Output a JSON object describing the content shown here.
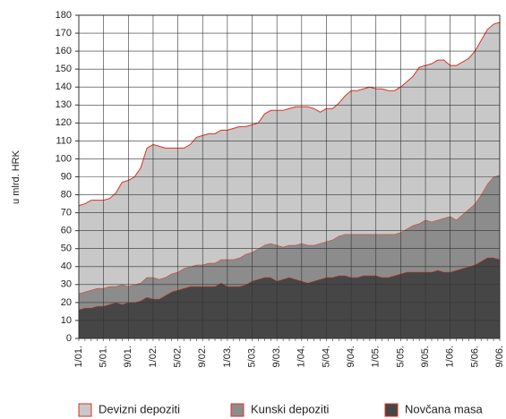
{
  "chart_data": {
    "type": "stacked-area",
    "y_label": "u mlrd. HRK",
    "categories": [
      "1/01.",
      null,
      null,
      null,
      "5/01.",
      null,
      null,
      null,
      "9/01.",
      null,
      null,
      null,
      "1/02.",
      null,
      null,
      null,
      "5/02.",
      null,
      null,
      null,
      "9/02.",
      null,
      null,
      null,
      "1/03.",
      null,
      null,
      null,
      "5/03.",
      null,
      null,
      null,
      "9/03.",
      null,
      null,
      null,
      "1/04.",
      null,
      null,
      null,
      "5/04.",
      null,
      null,
      null,
      "9/04.",
      null,
      null,
      null,
      "1/05.",
      null,
      null,
      null,
      "5/05.",
      null,
      null,
      null,
      "9/05.",
      null,
      null,
      null,
      "1/06.",
      null,
      null,
      null,
      "5/06.",
      null,
      null,
      null,
      "9/06."
    ],
    "series": [
      {
        "name": "Devizni depoziti",
        "color": "#c8c8c8",
        "values": [
          49,
          49,
          50,
          49,
          49,
          49,
          52,
          57,
          59,
          60,
          64,
          72,
          74,
          74,
          72,
          70,
          69,
          67,
          68,
          71,
          72,
          72,
          72,
          72,
          72,
          73,
          73,
          71,
          71,
          70,
          73,
          74,
          75,
          76,
          76,
          77,
          76,
          77,
          76,
          73,
          74,
          73,
          74,
          77,
          80,
          80,
          81,
          82,
          81,
          81,
          80,
          80,
          81,
          82,
          83,
          87,
          86,
          88,
          89,
          88,
          84,
          86,
          85,
          84,
          85,
          86,
          86,
          85,
          85
        ]
      },
      {
        "name": "Kunski depoziti",
        "color": "#8c8c8c",
        "values": [
          9,
          9,
          10,
          10,
          10,
          10,
          9,
          11,
          9,
          10,
          10,
          11,
          12,
          11,
          10,
          10,
          10,
          11,
          11,
          12,
          12,
          13,
          13,
          13,
          15,
          15,
          16,
          17,
          16,
          17,
          18,
          19,
          20,
          18,
          18,
          19,
          21,
          21,
          20,
          20,
          20,
          21,
          22,
          23,
          24,
          24,
          23,
          23,
          23,
          24,
          24,
          23,
          23,
          24,
          26,
          27,
          29,
          28,
          28,
          30,
          31,
          28,
          30,
          32,
          34,
          37,
          41,
          45,
          47
        ]
      },
      {
        "name": "Novčana masa",
        "color": "#464646",
        "values": [
          16,
          17,
          17,
          18,
          18,
          19,
          20,
          19,
          20,
          20,
          21,
          23,
          22,
          22,
          24,
          26,
          27,
          28,
          29,
          29,
          29,
          29,
          29,
          31,
          29,
          29,
          29,
          30,
          32,
          33,
          34,
          34,
          32,
          33,
          34,
          33,
          32,
          31,
          32,
          33,
          34,
          34,
          35,
          35,
          34,
          34,
          35,
          35,
          35,
          34,
          34,
          35,
          36,
          37,
          37,
          37,
          37,
          37,
          38,
          37,
          37,
          38,
          39,
          40,
          41,
          43,
          45,
          45,
          44
        ]
      }
    ],
    "outline_color": "#e03020",
    "ylim": [
      0,
      180
    ],
    "yticks": [
      0,
      10,
      20,
      30,
      40,
      50,
      60,
      70,
      80,
      90,
      100,
      110,
      120,
      130,
      140,
      150,
      160,
      170,
      180
    ],
    "grid": true
  }
}
